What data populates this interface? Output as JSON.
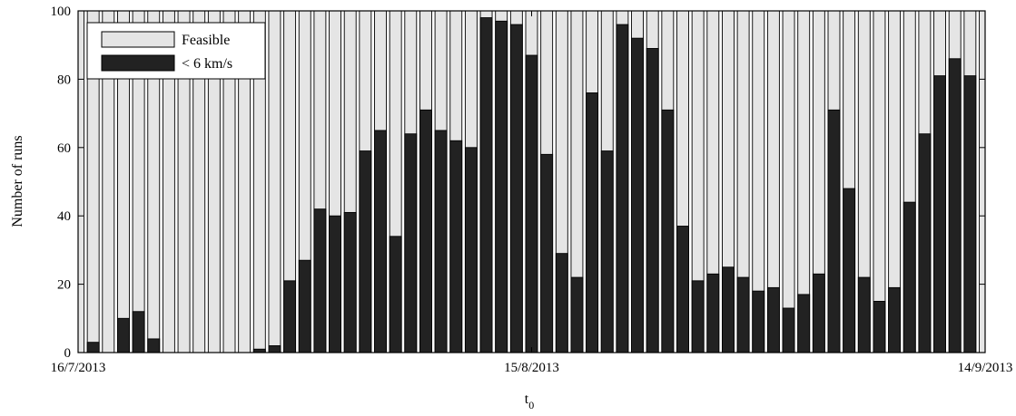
{
  "chart_data": {
    "type": "bar",
    "stacking": "overlay",
    "xlabel": "t",
    "xlabel_subscript": "0",
    "ylabel": "Number of runs",
    "ylim": [
      0,
      100
    ],
    "yticks": [
      0,
      20,
      40,
      60,
      80,
      100
    ],
    "grid": false,
    "legend_position": "top-left",
    "xtick_labels": [
      {
        "label": "16/7/2013",
        "index": 0
      },
      {
        "label": "15/8/2013",
        "index": 30
      },
      {
        "label": "14/9/2013",
        "index": 60
      }
    ],
    "series": [
      {
        "name": "Feasible",
        "color": "#e5e5e5",
        "values": [
          100,
          100,
          100,
          100,
          100,
          100,
          100,
          100,
          100,
          100,
          100,
          100,
          100,
          100,
          100,
          100,
          100,
          100,
          100,
          100,
          100,
          100,
          100,
          100,
          100,
          100,
          100,
          100,
          100,
          100,
          100,
          100,
          100,
          100,
          100,
          100,
          100,
          100,
          100,
          100,
          100,
          100,
          100,
          100,
          100,
          100,
          100,
          100,
          100,
          100,
          100,
          100,
          100,
          100,
          100,
          100,
          100,
          100,
          100,
          100,
          100
        ]
      },
      {
        "name": "< 6 km/s",
        "color": "#222222",
        "values": [
          0,
          3,
          0,
          10,
          12,
          4,
          0,
          0,
          0,
          0,
          0,
          0,
          1,
          2,
          21,
          27,
          42,
          40,
          41,
          59,
          65,
          34,
          64,
          71,
          65,
          62,
          60,
          98,
          97,
          96,
          87,
          58,
          29,
          22,
          76,
          59,
          96,
          92,
          89,
          71,
          37,
          21,
          23,
          25,
          22,
          18,
          19,
          13,
          17,
          23,
          71,
          48,
          22,
          15,
          19,
          44,
          64,
          81,
          86,
          81,
          0
        ]
      }
    ]
  }
}
